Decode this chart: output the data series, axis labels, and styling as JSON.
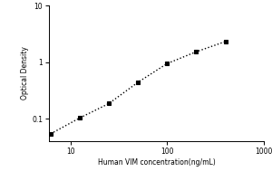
{
  "x_data": [
    6.25,
    12.5,
    25,
    50,
    100,
    200,
    400
  ],
  "y_data": [
    0.054,
    0.103,
    0.185,
    0.44,
    0.94,
    1.52,
    2.3
  ],
  "xlim": [
    6,
    1000
  ],
  "ylim": [
    0.04,
    10
  ],
  "xlabel": "Human VIM concentration(ng/mL)",
  "ylabel": "Optical Density",
  "line_color": "black",
  "marker_color": "black",
  "marker": "s",
  "linestyle": ":",
  "linewidth": 1.0,
  "markersize": 3.5,
  "background_color": "#ffffff",
  "label_fontsize": 5.5,
  "tick_fontsize": 5.5,
  "x_ticks": [
    10,
    100,
    1000
  ],
  "y_ticks": [
    0.1,
    1,
    10
  ]
}
